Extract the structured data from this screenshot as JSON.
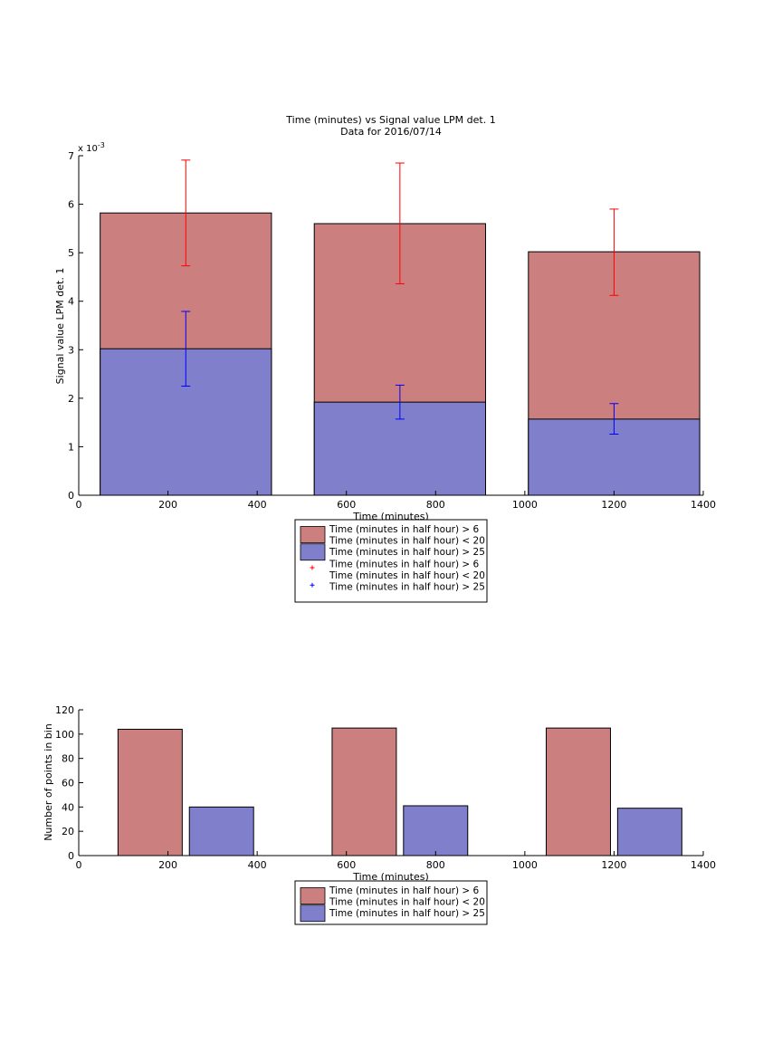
{
  "chart_data": [
    {
      "type": "bar",
      "title": "Time (minutes) vs Signal value LPM det. 1",
      "subtitle": "Data for 2016/07/14",
      "xlabel": "Time (minutes)",
      "ylabel": "Signal value LPM det. 1",
      "y_exponent_label": "x 10",
      "y_exponent_power": "-3",
      "xlim": [
        0,
        1400
      ],
      "ylim": [
        0,
        7
      ],
      "xticks": [
        "0",
        "200",
        "400",
        "600",
        "800",
        "1000",
        "1200",
        "1400"
      ],
      "yticks": [
        "0",
        "1",
        "2",
        "3",
        "4",
        "5",
        "6",
        "7"
      ],
      "bar_ranges": [
        [
          48,
          432
        ],
        [
          528,
          912
        ],
        [
          1008,
          1392
        ]
      ],
      "series": [
        {
          "name": "Time (minutes in half hour) > 6\nTime (minutes in half hour) < 20",
          "color": "#cc7f7f",
          "values": [
            5.82,
            5.6,
            5.02
          ]
        },
        {
          "name": "Time (minutes in half hour) > 25",
          "color": "#7f7fcc",
          "values": [
            3.02,
            1.92,
            1.57
          ]
        }
      ],
      "errorbars": [
        {
          "name": "Time (minutes in half hour) > 6\nTime (minutes in half hour) < 20",
          "color": "#ff0000",
          "x": [
            240,
            720,
            1200
          ],
          "low": [
            4.73,
            4.36,
            4.12
          ],
          "high": [
            6.91,
            6.85,
            5.9
          ]
        },
        {
          "name": "Time (minutes in half hour) > 25",
          "color": "#0000ff",
          "x": [
            240,
            720,
            1200
          ],
          "low": [
            2.25,
            1.57,
            1.26
          ],
          "high": [
            3.79,
            2.27,
            1.89
          ]
        }
      ],
      "legend": {
        "placement": "below",
        "entries": [
          {
            "kind": "patch",
            "color": "#cc7f7f",
            "lines": [
              "Time (minutes in half hour) > 6",
              "Time (minutes in half hour) < 20"
            ]
          },
          {
            "kind": "patch",
            "color": "#7f7fcc",
            "lines": [
              "Time (minutes in half hour) > 25"
            ]
          },
          {
            "kind": "marker",
            "color": "#ff0000",
            "lines": [
              "Time (minutes in half hour) > 6",
              "Time (minutes in half hour) < 20"
            ]
          },
          {
            "kind": "marker",
            "color": "#0000ff",
            "lines": [
              "Time (minutes in half hour) > 25"
            ]
          }
        ]
      }
    },
    {
      "type": "bar",
      "title": "",
      "xlabel": "Time (minutes)",
      "ylabel": "Number of points in bin",
      "xlim": [
        0,
        1400
      ],
      "ylim": [
        0,
        120
      ],
      "xticks": [
        "0",
        "200",
        "400",
        "600",
        "800",
        "1000",
        "1200",
        "1400"
      ],
      "yticks": [
        "0",
        "20",
        "40",
        "60",
        "80",
        "100",
        "120"
      ],
      "series": [
        {
          "name": "Time (minutes in half hour) > 6\nTime (minutes in half hour) < 20",
          "color": "#cc7f7f",
          "bar_ranges": [
            [
              88,
              232
            ],
            [
              568,
              712
            ],
            [
              1048,
              1192
            ]
          ],
          "values": [
            104,
            105,
            105
          ]
        },
        {
          "name": "Time (minutes in half hour) > 25",
          "color": "#7f7fcc",
          "bar_ranges": [
            [
              248,
              392
            ],
            [
              728,
              872
            ],
            [
              1208,
              1352
            ]
          ],
          "values": [
            40,
            41,
            39
          ]
        }
      ],
      "legend": {
        "placement": "below",
        "entries": [
          {
            "kind": "patch",
            "color": "#cc7f7f",
            "lines": [
              "Time (minutes in half hour) > 6",
              "Time (minutes in half hour) < 20"
            ]
          },
          {
            "kind": "patch",
            "color": "#7f7fcc",
            "lines": [
              "Time (minutes in half hour) > 25"
            ]
          }
        ]
      }
    }
  ]
}
